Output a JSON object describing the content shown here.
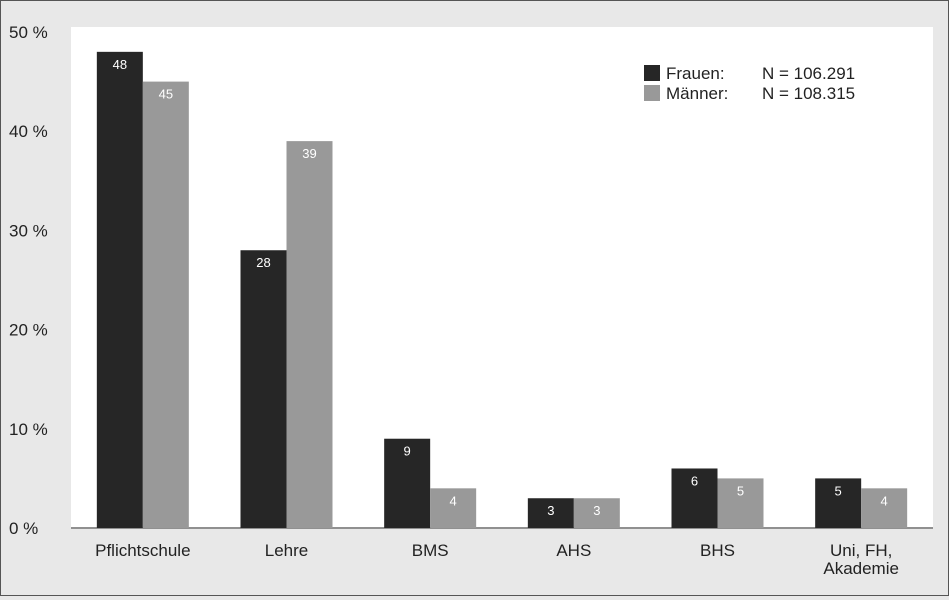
{
  "chart_data": {
    "type": "bar",
    "categories": [
      "Pflichtschule",
      "Lehre",
      "BMS",
      "AHS",
      "BHS",
      "Uni, FH,\nAkademie"
    ],
    "series": [
      {
        "name": "Frauen:",
        "n_label": "N = 106.291",
        "color": "#262626",
        "values": [
          48,
          28,
          9,
          3,
          6,
          5
        ]
      },
      {
        "name": "Männer:",
        "n_label": "N = 108.315",
        "color": "#999999",
        "values": [
          45,
          39,
          4,
          3,
          5,
          4
        ]
      }
    ],
    "y_ticks": [
      "0 %",
      "10 %",
      "20 %",
      "30 %",
      "40 %",
      "50 %"
    ],
    "ylim": [
      0,
      50
    ],
    "legend_position": "top-right",
    "grid": false
  }
}
